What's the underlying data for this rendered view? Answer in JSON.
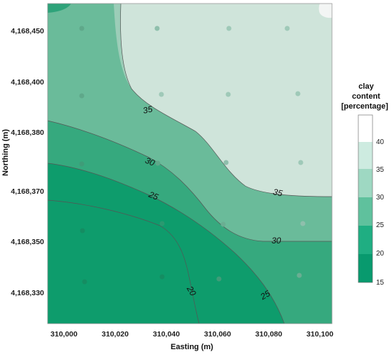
{
  "map": {
    "xlabel": "Easting (m)",
    "ylabel": "Northing (m)",
    "x_ticks": [
      "310,000",
      "310,020",
      "310,040",
      "310,060",
      "310,080",
      "310,100"
    ],
    "y_ticks": [
      "4,168,450",
      "4,168,400",
      "4,168,380",
      "4,168,370",
      "4,168,350",
      "4,168,330"
    ],
    "contour_labels": [
      "35",
      "30",
      "25",
      "35",
      "30",
      "25",
      "20"
    ],
    "zone_colors": [
      "#0e9c6c",
      "#36a97e",
      "#6abb9a",
      "#9ccdb8",
      "#cfe4da",
      "#f3f5f4"
    ]
  },
  "legend": {
    "title_line1": "clay",
    "title_line2": "content",
    "title_line3": "[percentage]",
    "ticks": [
      "40",
      "35",
      "30",
      "25",
      "20",
      "15"
    ],
    "colors": [
      "#ffffff",
      "#cdebe0",
      "#9ed8c2",
      "#5fc19d",
      "#1fae82",
      "#089a6e"
    ]
  }
}
